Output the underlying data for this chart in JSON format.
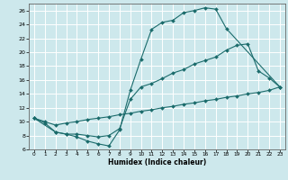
{
  "xlabel": "Humidex (Indice chaleur)",
  "bg_color": "#cde8ec",
  "grid_color": "#ffffff",
  "line_color": "#1a6b6b",
  "xlim": [
    -0.5,
    23.5
  ],
  "ylim": [
    6,
    27
  ],
  "xticks": [
    0,
    1,
    2,
    3,
    4,
    5,
    6,
    7,
    8,
    9,
    10,
    11,
    12,
    13,
    14,
    15,
    16,
    17,
    18,
    19,
    20,
    21,
    22,
    23
  ],
  "yticks": [
    6,
    8,
    10,
    12,
    14,
    16,
    18,
    20,
    22,
    24,
    26
  ],
  "line1_x": [
    0,
    1,
    2,
    3,
    4,
    5,
    6,
    7,
    8,
    9,
    10,
    11,
    12,
    13,
    14,
    15,
    16,
    17,
    18,
    23
  ],
  "line1_y": [
    10.5,
    9.8,
    8.5,
    8.2,
    7.8,
    7.2,
    6.8,
    6.5,
    8.8,
    14.5,
    19.0,
    23.3,
    24.3,
    24.6,
    25.7,
    26.0,
    26.4,
    26.2,
    23.4,
    15.0
  ],
  "line2_x": [
    0,
    2,
    3,
    4,
    5,
    6,
    7,
    8,
    9,
    10,
    11,
    12,
    13,
    14,
    15,
    16,
    17,
    18,
    19,
    20,
    21,
    22,
    23
  ],
  "line2_y": [
    10.5,
    8.5,
    8.2,
    8.2,
    8.0,
    7.8,
    8.0,
    9.0,
    13.2,
    15.0,
    15.5,
    16.2,
    17.0,
    17.5,
    18.3,
    18.8,
    19.3,
    20.3,
    21.0,
    21.2,
    17.3,
    16.3,
    15.0
  ],
  "line3_x": [
    0,
    1,
    2,
    3,
    4,
    5,
    6,
    7,
    8,
    9,
    10,
    11,
    12,
    13,
    14,
    15,
    16,
    17,
    18,
    19,
    20,
    21,
    22,
    23
  ],
  "line3_y": [
    10.5,
    10.0,
    9.5,
    9.8,
    10.0,
    10.3,
    10.5,
    10.7,
    11.0,
    11.2,
    11.5,
    11.7,
    12.0,
    12.2,
    12.5,
    12.7,
    13.0,
    13.2,
    13.5,
    13.7,
    14.0,
    14.2,
    14.5,
    15.0
  ]
}
